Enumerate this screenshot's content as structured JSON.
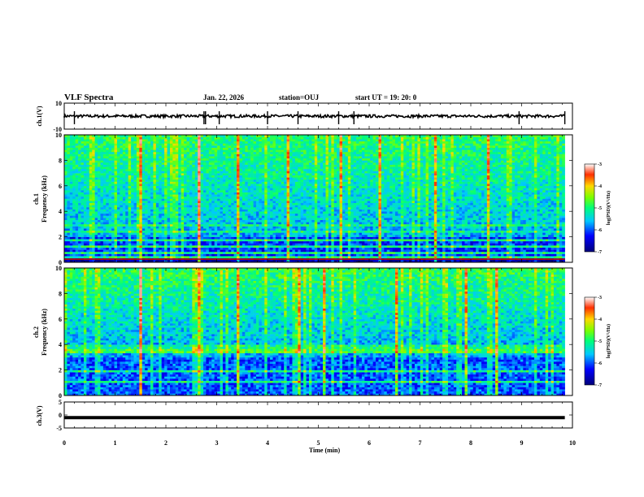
{
  "header": {
    "title": "VLF Spectra",
    "date": "Jan. 22, 2026",
    "station": "station=OUJ",
    "start": "start UT =  19: 20: 0"
  },
  "chart_data": [
    {
      "type": "line",
      "name": "ch1-waveform",
      "ylabel": "ch.1(V)",
      "ylim": [
        -10,
        10
      ],
      "yticks": [
        "10",
        "-10"
      ],
      "xlim": [
        0,
        10
      ],
      "trace_level": 0,
      "spikes_min": [
        0.2,
        2.75,
        2.78,
        3.05,
        4.0,
        4.6,
        5.4,
        5.7,
        9.85,
        8.95
      ]
    },
    {
      "type": "heatmap",
      "name": "ch1-spectrogram",
      "ylabel": "ch.1\nFrequency (kHz)",
      "ylabel_line1": "ch.1",
      "ylabel_line2": "Frequency (kHz)",
      "xlim": [
        0,
        10
      ],
      "ylim": [
        0,
        10
      ],
      "yticks": [
        "0",
        "2",
        "4",
        "6",
        "8",
        "10"
      ],
      "data_end_min": 9.85,
      "colorbar": {
        "label": "log(PSD)(V²/Hz)",
        "range": [
          -7,
          -3
        ],
        "ticks": [
          "-3",
          "-4",
          "-5",
          "-6",
          "-7"
        ]
      },
      "bright_bursts_min": [
        1.5,
        2.6,
        3.4,
        4.4,
        5.4,
        6.2,
        7.3,
        8.3
      ]
    },
    {
      "type": "heatmap",
      "name": "ch2-spectrogram",
      "ylabel_line1": "ch.2",
      "ylabel_line2": "Frequency (kHz)",
      "xlim": [
        0,
        10
      ],
      "ylim": [
        0,
        10
      ],
      "yticks": [
        "0",
        "2",
        "4",
        "6",
        "8",
        "10"
      ],
      "data_end_min": 9.85,
      "colorbar": {
        "label": "log(PSD)(V²/Hz)",
        "range": [
          -7,
          -3
        ],
        "ticks": [
          "-3",
          "-4",
          "-5",
          "-6",
          "-7"
        ]
      },
      "bright_bursts_min": [
        1.5,
        2.6,
        3.4,
        4.6,
        5.1,
        6.5,
        7.9,
        8.5
      ]
    },
    {
      "type": "line",
      "name": "ch3-waveform",
      "ylabel": "ch.3(V)",
      "ylim": [
        -5,
        5
      ],
      "yticks": [
        "5",
        "0",
        "-5"
      ],
      "xlim": [
        0,
        10
      ],
      "trace_level": -1
    }
  ],
  "xaxis": {
    "label": "Time (min)",
    "ticks": [
      "0",
      "1",
      "2",
      "3",
      "4",
      "5",
      "6",
      "7",
      "8",
      "9",
      "10"
    ]
  }
}
